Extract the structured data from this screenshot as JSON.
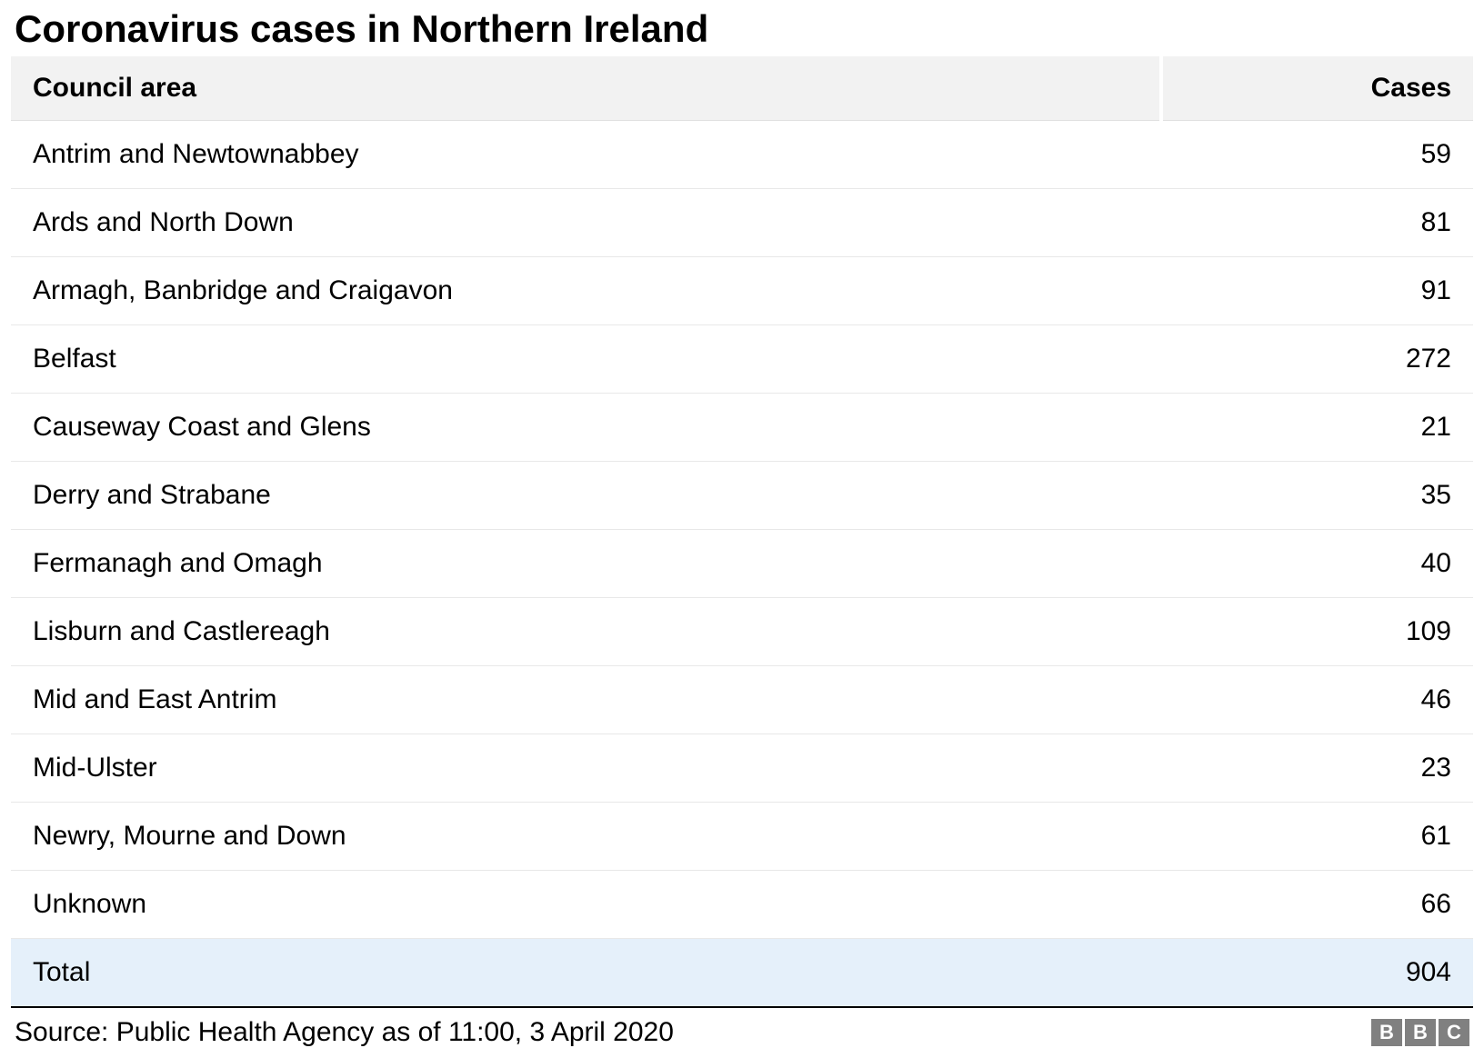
{
  "title": "Coronavirus cases in Northern Ireland",
  "table": {
    "type": "table",
    "columns": [
      "Council area",
      "Cases"
    ],
    "column_alignment": [
      "left",
      "right"
    ],
    "header_background_color": "#f2f2f2",
    "header_font_weight": "bold",
    "header_fontsize": 30,
    "body_fontsize": 30,
    "text_color": "#000000",
    "row_border_color": "#e8e8e8",
    "total_row_background_color": "#e5f0fa",
    "bottom_border_color": "#000000",
    "rows": [
      {
        "area": "Antrim and Newtownabbey",
        "cases": "59"
      },
      {
        "area": "Ards and North Down",
        "cases": "81"
      },
      {
        "area": "Armagh, Banbridge and Craigavon",
        "cases": "91"
      },
      {
        "area": "Belfast",
        "cases": "272"
      },
      {
        "area": "Causeway Coast and Glens",
        "cases": "21"
      },
      {
        "area": "Derry and Strabane",
        "cases": "35"
      },
      {
        "area": "Fermanagh and Omagh",
        "cases": "40"
      },
      {
        "area": "Lisburn and Castlereagh",
        "cases": "109"
      },
      {
        "area": "Mid and East Antrim",
        "cases": "46"
      },
      {
        "area": "Mid-Ulster",
        "cases": "23"
      },
      {
        "area": "Newry, Mourne and Down",
        "cases": "61"
      },
      {
        "area": "Unknown",
        "cases": "66"
      }
    ],
    "total_row": {
      "area": "Total",
      "cases": "904"
    }
  },
  "footer": {
    "source_text": "Source: Public Health Agency as of 11:00, 3 April 2020",
    "source_fontsize": 30,
    "logo_letters": [
      "B",
      "B",
      "C"
    ],
    "logo_box_color": "#808080",
    "logo_text_color": "#ffffff"
  },
  "background_color": "#ffffff"
}
